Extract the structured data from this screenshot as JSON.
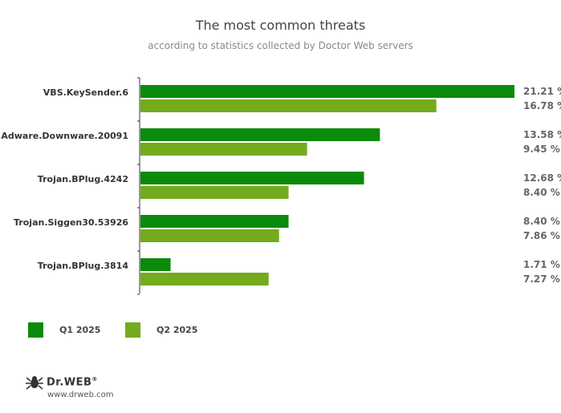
{
  "title": "The most common threats",
  "subtitle": "according to statistics collected by Doctor Web servers",
  "chart_data": {
    "type": "bar",
    "orientation": "horizontal",
    "categories": [
      "VBS.KeySender.6",
      "Adware.Downware.20091",
      "Trojan.BPlug.4242",
      "Trojan.Siggen30.53926",
      "Trojan.BPlug.3814"
    ],
    "series": [
      {
        "name": "Q1 2025",
        "color": "#0b8a0b",
        "values": [
          21.21,
          13.58,
          12.68,
          8.4,
          1.71
        ],
        "labels": [
          "21.21 %",
          "13.58 %",
          "12.68 %",
          "8.40 %",
          "1.71 %"
        ]
      },
      {
        "name": "Q2 2025",
        "color": "#72ab1c",
        "values": [
          16.78,
          9.45,
          8.4,
          7.86,
          7.27
        ],
        "labels": [
          "16.78 %",
          "9.45 %",
          "8.40 %",
          "7.86 %",
          "7.27 %"
        ]
      }
    ],
    "xlim": [
      0,
      21.21
    ],
    "grid": false,
    "legend_position": "bottom-left"
  },
  "legend": {
    "q1": "Q1 2025",
    "q2": "Q2 2025",
    "q1_color": "#0b8a0b",
    "q2_color": "#72ab1c"
  },
  "footer": {
    "logo_text": "Dr.WEB",
    "logo_mark": "®",
    "site": "www.drweb.com",
    "logo_icon": "spider-icon"
  }
}
